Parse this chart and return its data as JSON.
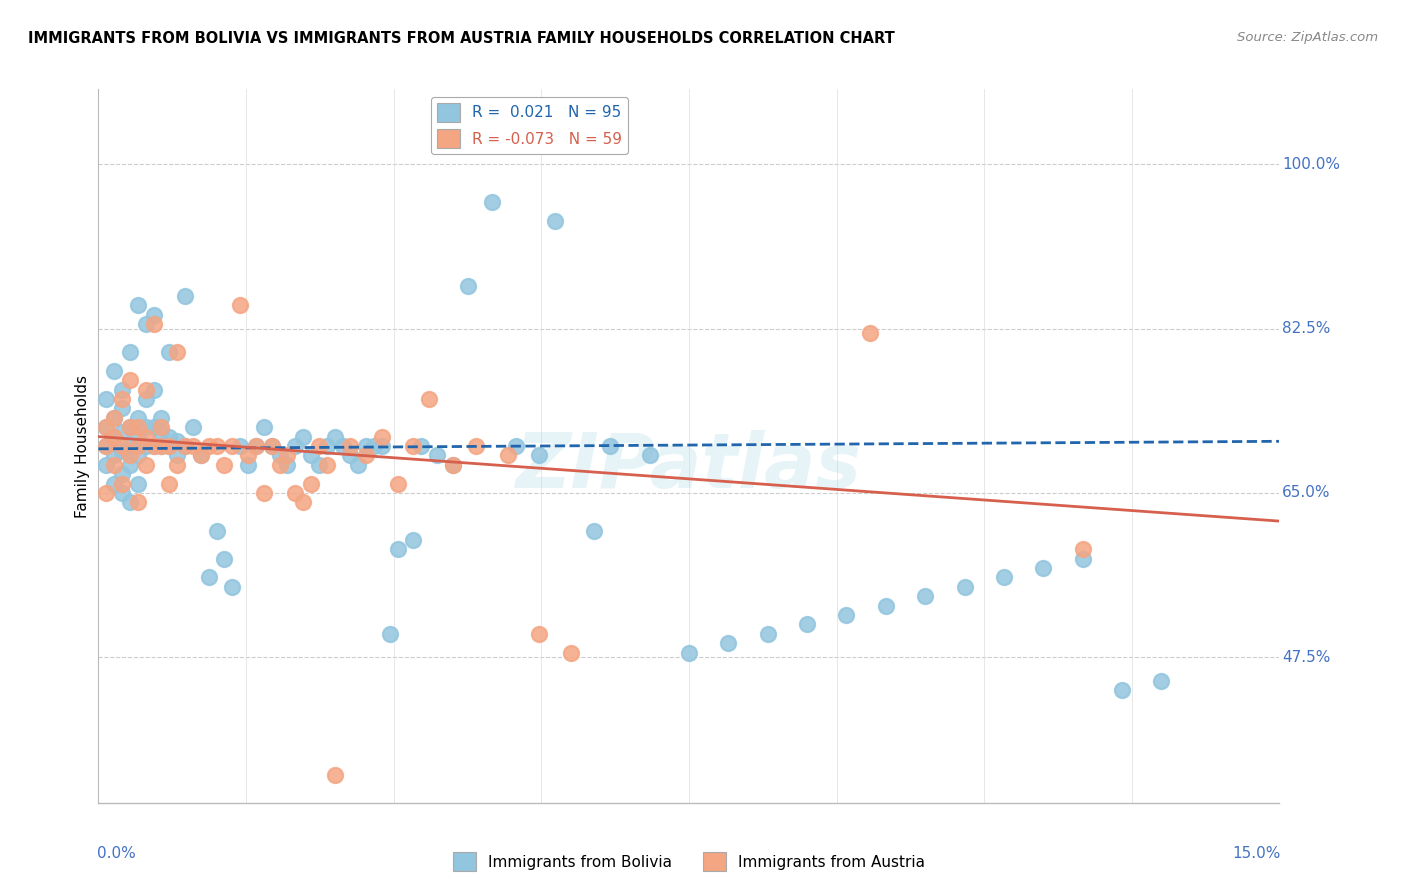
{
  "title": "IMMIGRANTS FROM BOLIVIA VS IMMIGRANTS FROM AUSTRIA FAMILY HOUSEHOLDS CORRELATION CHART",
  "source": "Source: ZipAtlas.com",
  "ylabel": "Family Households",
  "ytick_labels": [
    "100.0%",
    "82.5%",
    "65.0%",
    "47.5%"
  ],
  "ytick_values": [
    1.0,
    0.825,
    0.65,
    0.475
  ],
  "xlim": [
    0.0,
    0.15
  ],
  "ylim": [
    0.32,
    1.08
  ],
  "bolivia_color": "#92c5de",
  "austria_color": "#f4a582",
  "bolivia_line_color": "#2166ac",
  "austria_line_color": "#d6604d",
  "bolivia_R": 0.021,
  "austria_R": -0.073,
  "bolivia_line_y0": 0.697,
  "bolivia_line_y1": 0.705,
  "austria_line_y0": 0.71,
  "austria_line_y1": 0.62,
  "bolivia_x": [
    0.001,
    0.001,
    0.001,
    0.001,
    0.002,
    0.002,
    0.002,
    0.002,
    0.002,
    0.003,
    0.003,
    0.003,
    0.003,
    0.003,
    0.003,
    0.004,
    0.004,
    0.004,
    0.004,
    0.004,
    0.005,
    0.005,
    0.005,
    0.005,
    0.005,
    0.006,
    0.006,
    0.006,
    0.006,
    0.007,
    0.007,
    0.007,
    0.007,
    0.008,
    0.008,
    0.008,
    0.009,
    0.009,
    0.009,
    0.01,
    0.01,
    0.011,
    0.011,
    0.012,
    0.013,
    0.014,
    0.015,
    0.016,
    0.017,
    0.018,
    0.019,
    0.02,
    0.021,
    0.022,
    0.023,
    0.024,
    0.025,
    0.026,
    0.027,
    0.028,
    0.029,
    0.03,
    0.031,
    0.032,
    0.033,
    0.034,
    0.035,
    0.036,
    0.037,
    0.038,
    0.04,
    0.041,
    0.043,
    0.045,
    0.047,
    0.05,
    0.053,
    0.056,
    0.058,
    0.063,
    0.065,
    0.07,
    0.075,
    0.08,
    0.085,
    0.09,
    0.095,
    0.1,
    0.105,
    0.11,
    0.115,
    0.12,
    0.125,
    0.13,
    0.135
  ],
  "bolivia_y": [
    0.7,
    0.72,
    0.75,
    0.68,
    0.69,
    0.71,
    0.73,
    0.66,
    0.78,
    0.67,
    0.695,
    0.715,
    0.74,
    0.76,
    0.65,
    0.68,
    0.7,
    0.72,
    0.8,
    0.64,
    0.69,
    0.71,
    0.73,
    0.85,
    0.66,
    0.7,
    0.72,
    0.75,
    0.83,
    0.7,
    0.72,
    0.76,
    0.84,
    0.7,
    0.715,
    0.73,
    0.7,
    0.71,
    0.8,
    0.705,
    0.69,
    0.7,
    0.86,
    0.72,
    0.69,
    0.56,
    0.61,
    0.58,
    0.55,
    0.7,
    0.68,
    0.7,
    0.72,
    0.7,
    0.69,
    0.68,
    0.7,
    0.71,
    0.69,
    0.68,
    0.7,
    0.71,
    0.7,
    0.69,
    0.68,
    0.7,
    0.7,
    0.7,
    0.5,
    0.59,
    0.6,
    0.7,
    0.69,
    0.68,
    0.87,
    0.96,
    0.7,
    0.69,
    0.94,
    0.61,
    0.7,
    0.69,
    0.48,
    0.49,
    0.5,
    0.51,
    0.52,
    0.53,
    0.54,
    0.55,
    0.56,
    0.57,
    0.58,
    0.44,
    0.45
  ],
  "austria_x": [
    0.001,
    0.001,
    0.001,
    0.002,
    0.002,
    0.002,
    0.003,
    0.003,
    0.003,
    0.004,
    0.004,
    0.004,
    0.005,
    0.005,
    0.005,
    0.006,
    0.006,
    0.006,
    0.007,
    0.007,
    0.008,
    0.008,
    0.009,
    0.009,
    0.01,
    0.01,
    0.011,
    0.012,
    0.013,
    0.014,
    0.015,
    0.016,
    0.017,
    0.018,
    0.019,
    0.02,
    0.021,
    0.022,
    0.023,
    0.024,
    0.025,
    0.026,
    0.027,
    0.028,
    0.029,
    0.03,
    0.032,
    0.034,
    0.036,
    0.038,
    0.04,
    0.042,
    0.045,
    0.048,
    0.052,
    0.056,
    0.06,
    0.098,
    0.125
  ],
  "austria_y": [
    0.7,
    0.72,
    0.65,
    0.68,
    0.71,
    0.73,
    0.66,
    0.7,
    0.75,
    0.69,
    0.72,
    0.77,
    0.7,
    0.72,
    0.64,
    0.68,
    0.71,
    0.76,
    0.7,
    0.83,
    0.7,
    0.72,
    0.66,
    0.7,
    0.68,
    0.8,
    0.7,
    0.7,
    0.69,
    0.7,
    0.7,
    0.68,
    0.7,
    0.85,
    0.69,
    0.7,
    0.65,
    0.7,
    0.68,
    0.69,
    0.65,
    0.64,
    0.66,
    0.7,
    0.68,
    0.35,
    0.7,
    0.69,
    0.71,
    0.66,
    0.7,
    0.75,
    0.68,
    0.7,
    0.69,
    0.5,
    0.48,
    0.82,
    0.59
  ]
}
